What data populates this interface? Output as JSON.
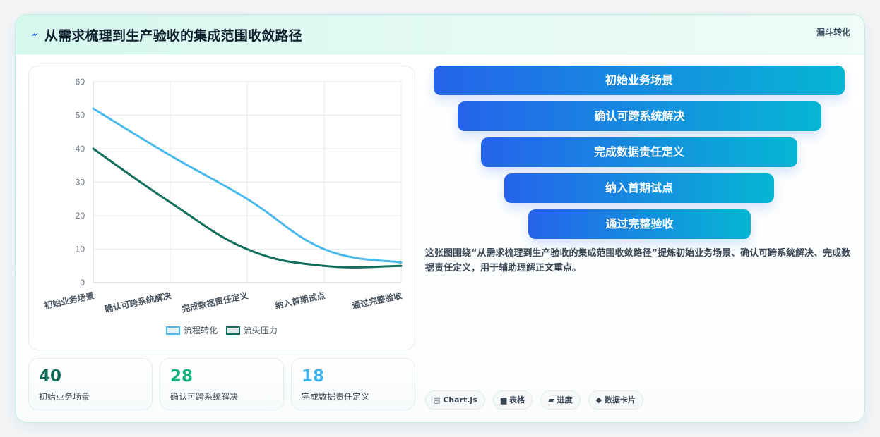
{
  "header": {
    "title": "从需求梳理到生产验收的集成范围收敛路径",
    "tag": "漏斗转化"
  },
  "chart_data": {
    "type": "line",
    "categories": [
      "初始业务场景",
      "确认可跨系统解决",
      "完成数据责任定义",
      "纳入首期试点",
      "通过完整验收"
    ],
    "series": [
      {
        "name": "流程转化",
        "values": [
          52,
          38,
          25,
          10,
          6
        ],
        "color": "#49b8ea"
      },
      {
        "name": "流失压力",
        "values": [
          40,
          24,
          10,
          5,
          5
        ],
        "color": "#126e5e"
      }
    ],
    "ylim": [
      0,
      60
    ],
    "yticks": [
      0,
      10,
      20,
      30,
      40,
      50,
      60
    ],
    "grid": true,
    "legend": "bottom"
  },
  "stats": [
    {
      "value": "40",
      "label": "初始业务场景",
      "color": "#0f6b57"
    },
    {
      "value": "28",
      "label": "确认可跨系统解决",
      "color": "#16b27a"
    },
    {
      "value": "18",
      "label": "完成数据责任定义",
      "color": "#3fb3ea"
    }
  ],
  "funnel": [
    "初始业务场景",
    "确认可跨系统解决",
    "完成数据责任定义",
    "纳入首期试点",
    "通过完整验收"
  ],
  "description": "这张图围绕“从需求梳理到生产验收的集成范围收敛路径”提炼初始业务场景、确认可跨系统解决、完成数据责任定义，用于辅助理解正文重点。",
  "chips": [
    {
      "icon": "chart-icon",
      "label": "Chart.js"
    },
    {
      "icon": "table-icon",
      "label": "表格"
    },
    {
      "icon": "progress-icon",
      "label": "进度"
    },
    {
      "icon": "card-icon",
      "label": "数据卡片"
    }
  ]
}
